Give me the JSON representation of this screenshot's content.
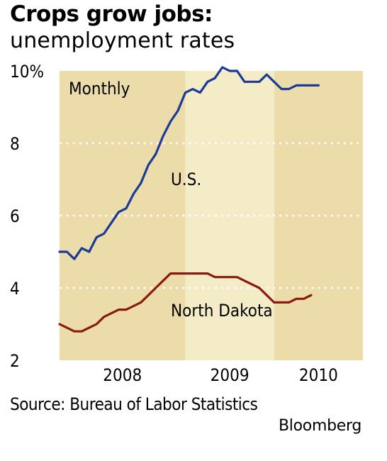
{
  "title": "Crops grow jobs:",
  "subtitle": "unemployment rates",
  "source": "Source: Bureau of Labor Statistics",
  "credit": "Bloomberg",
  "chart_data": {
    "type": "line",
    "frequency_label": "Monthly",
    "ylim": [
      2,
      10
    ],
    "yticks": [
      {
        "value": 10,
        "label": "10%"
      },
      {
        "value": 8,
        "label": "8"
      },
      {
        "value": 6,
        "label": "6"
      },
      {
        "value": 4,
        "label": "4"
      },
      {
        "value": 2,
        "label": "2"
      }
    ],
    "x_range": [
      "2007-07",
      "2010-12"
    ],
    "year_bands": [
      {
        "label": "2008",
        "start": "2007-07",
        "end": "2008-12",
        "color": "#ecdcaa"
      },
      {
        "label": "2009",
        "start": "2008-12",
        "end": "2009-12",
        "color": "#f4ecc6"
      },
      {
        "label": "2010",
        "start": "2009-12",
        "end": "2010-12",
        "color": "#ecdcaa"
      }
    ],
    "grid": {
      "style": "dotted",
      "values": [
        4,
        6,
        8
      ],
      "color": "#ffffff"
    },
    "series": [
      {
        "name": "U.S.",
        "color": "#1a3a9a",
        "start": "2007-07",
        "values": [
          5.0,
          5.0,
          4.8,
          5.1,
          5.0,
          5.4,
          5.5,
          5.8,
          6.1,
          6.2,
          6.6,
          6.9,
          7.4,
          7.7,
          8.2,
          8.6,
          8.9,
          9.4,
          9.5,
          9.4,
          9.7,
          9.8,
          10.1,
          10.0,
          10.0,
          9.7,
          9.7,
          9.7,
          9.9,
          9.7,
          9.5,
          9.5,
          9.6,
          9.6,
          9.6,
          9.6
        ]
      },
      {
        "name": "North Dakota",
        "color": "#8b1a10",
        "start": "2007-07",
        "values": [
          3.0,
          2.9,
          2.8,
          2.8,
          2.9,
          3.0,
          3.2,
          3.3,
          3.4,
          3.4,
          3.5,
          3.6,
          3.8,
          4.0,
          4.2,
          4.4,
          4.4,
          4.4,
          4.4,
          4.4,
          4.4,
          4.3,
          4.3,
          4.3,
          4.3,
          4.2,
          4.1,
          4.0,
          3.8,
          3.6,
          3.6,
          3.6,
          3.7,
          3.7,
          3.8
        ]
      }
    ]
  }
}
